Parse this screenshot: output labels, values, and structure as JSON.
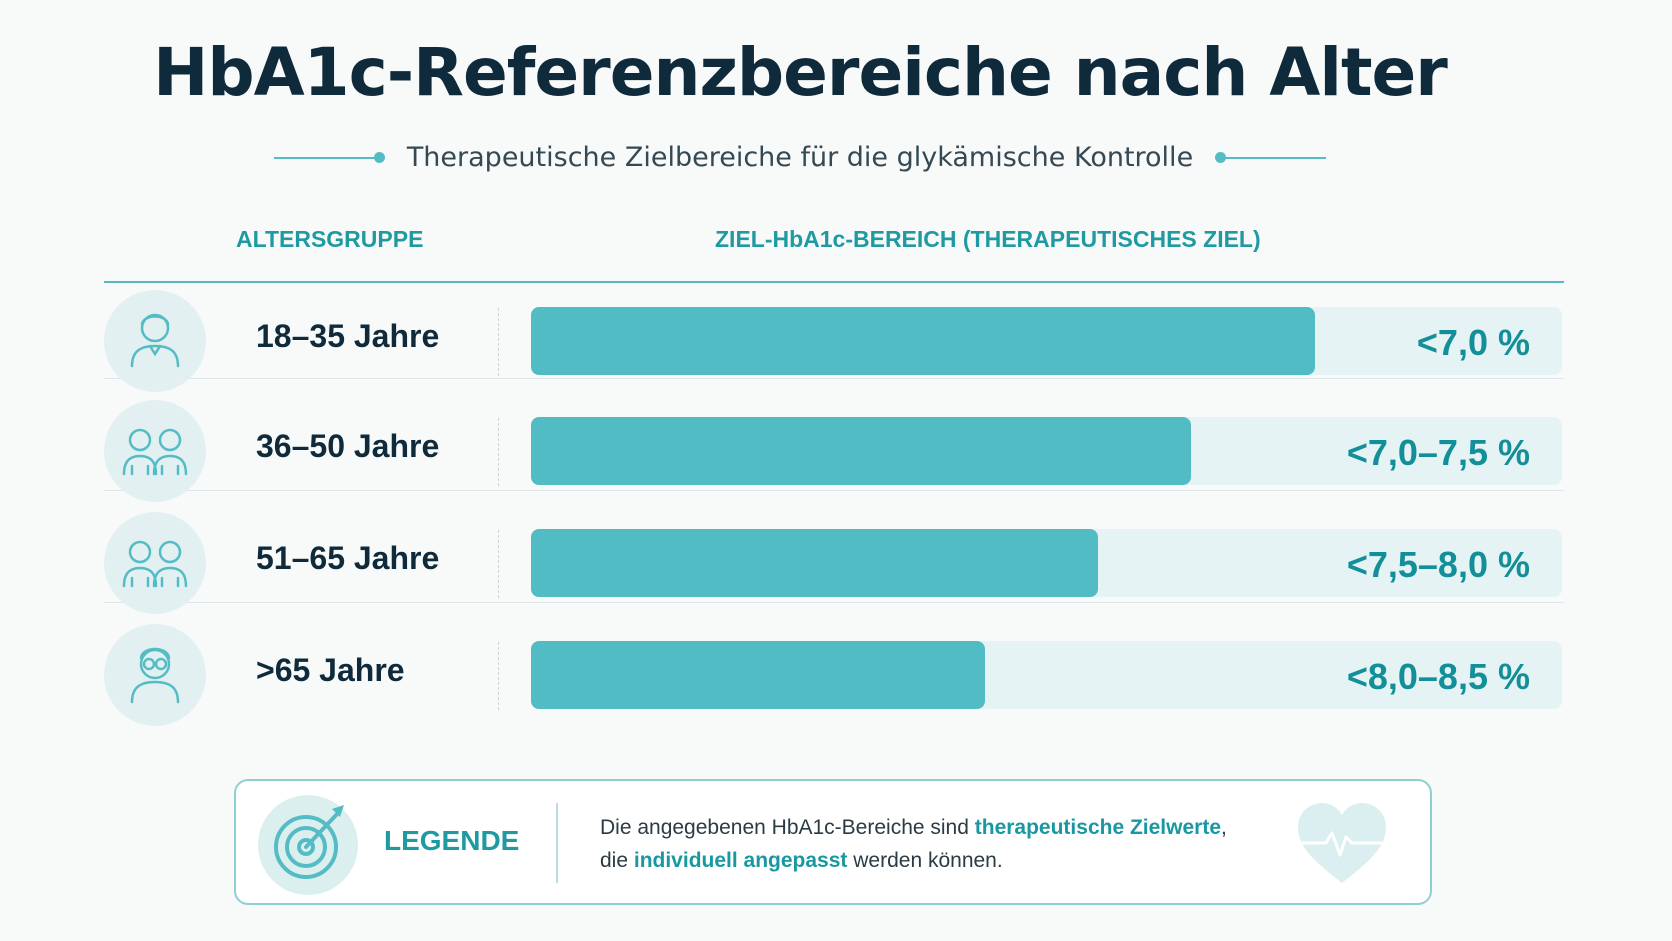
{
  "title": "HbA1c-Referenzbereiche nach Alter",
  "subtitle": "Therapeutische Zielbereiche für die glykämische Kontrolle",
  "columns": {
    "age": "ALTERSGRUPPE",
    "target": "ZIEL-HbA1c-BEREICH (THERAPEUTISCHES ZIEL)"
  },
  "colors": {
    "bar": "#52bcc5",
    "track": "#e6f3f4",
    "accent": "#1f9aa3",
    "title": "#0f2a3a"
  },
  "chart_data": {
    "type": "bar",
    "orientation": "horizontal",
    "categories": [
      "18–35 Jahre",
      "36–50 Jahre",
      "51–65 Jahre",
      ">65 Jahre"
    ],
    "labels": [
      "<7,0 %",
      "<7,0–7,5 %",
      "<7,5–8,0 %",
      "<8,0–8,5 %"
    ],
    "fill_fraction": [
      0.76,
      0.64,
      0.55,
      0.44
    ],
    "icons": [
      "person-icon",
      "two-persons-icon",
      "two-persons-icon",
      "elderly-person-glasses-icon"
    ]
  },
  "legend": {
    "title": "LEGENDE",
    "text_1": "Die angegebenen HbA1c-Bereiche sind ",
    "highlight_1": "therapeutische Zielwerte",
    "text_2": ",",
    "text_3": "die ",
    "highlight_2": "individuell angepasst",
    "text_4": " werden können.",
    "icon": "target-arrow-icon",
    "decor_icon": "heart-pulse-icon"
  }
}
